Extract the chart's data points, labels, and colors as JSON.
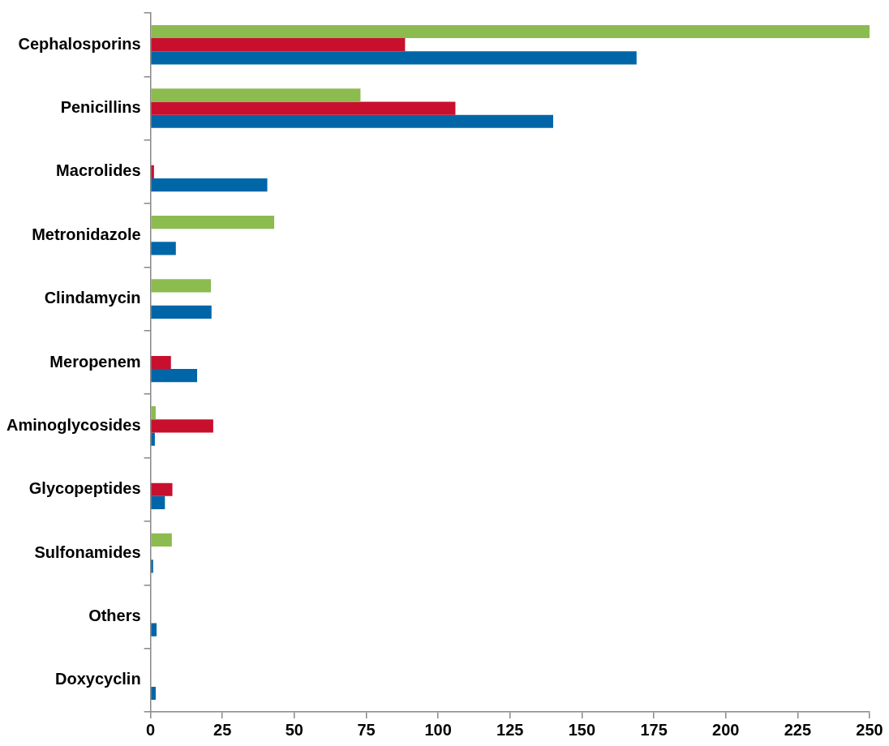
{
  "chart_data": {
    "type": "bar",
    "orientation": "horizontal",
    "categories": [
      "Cephalosporins",
      "Penicillins",
      "Macrolides",
      "Metronidazole",
      "Clindamycin",
      "Meropenem",
      "Aminoglycosides",
      "Glycopeptides",
      "Sulfonamides",
      "Others",
      "Doxycyclin"
    ],
    "series": [
      {
        "color": "#8cbb4f",
        "values": [
          250,
          73,
          null,
          43,
          21,
          null,
          1.8,
          null,
          7.4,
          null,
          null
        ]
      },
      {
        "color": "#c8102e",
        "values": [
          88.5,
          106,
          1.2,
          null,
          null,
          7.1,
          21.8,
          7.6,
          null,
          null,
          null
        ]
      },
      {
        "color": "#0066a8",
        "values": [
          169,
          140,
          40.6,
          8.8,
          21.2,
          16.2,
          1.5,
          5,
          0.9,
          2.1,
          1.8
        ]
      }
    ],
    "xlim": [
      0,
      250
    ],
    "xticks": [
      0,
      25,
      50,
      75,
      100,
      125,
      150,
      175,
      200,
      225,
      250
    ],
    "grid": false,
    "legend": false
  }
}
